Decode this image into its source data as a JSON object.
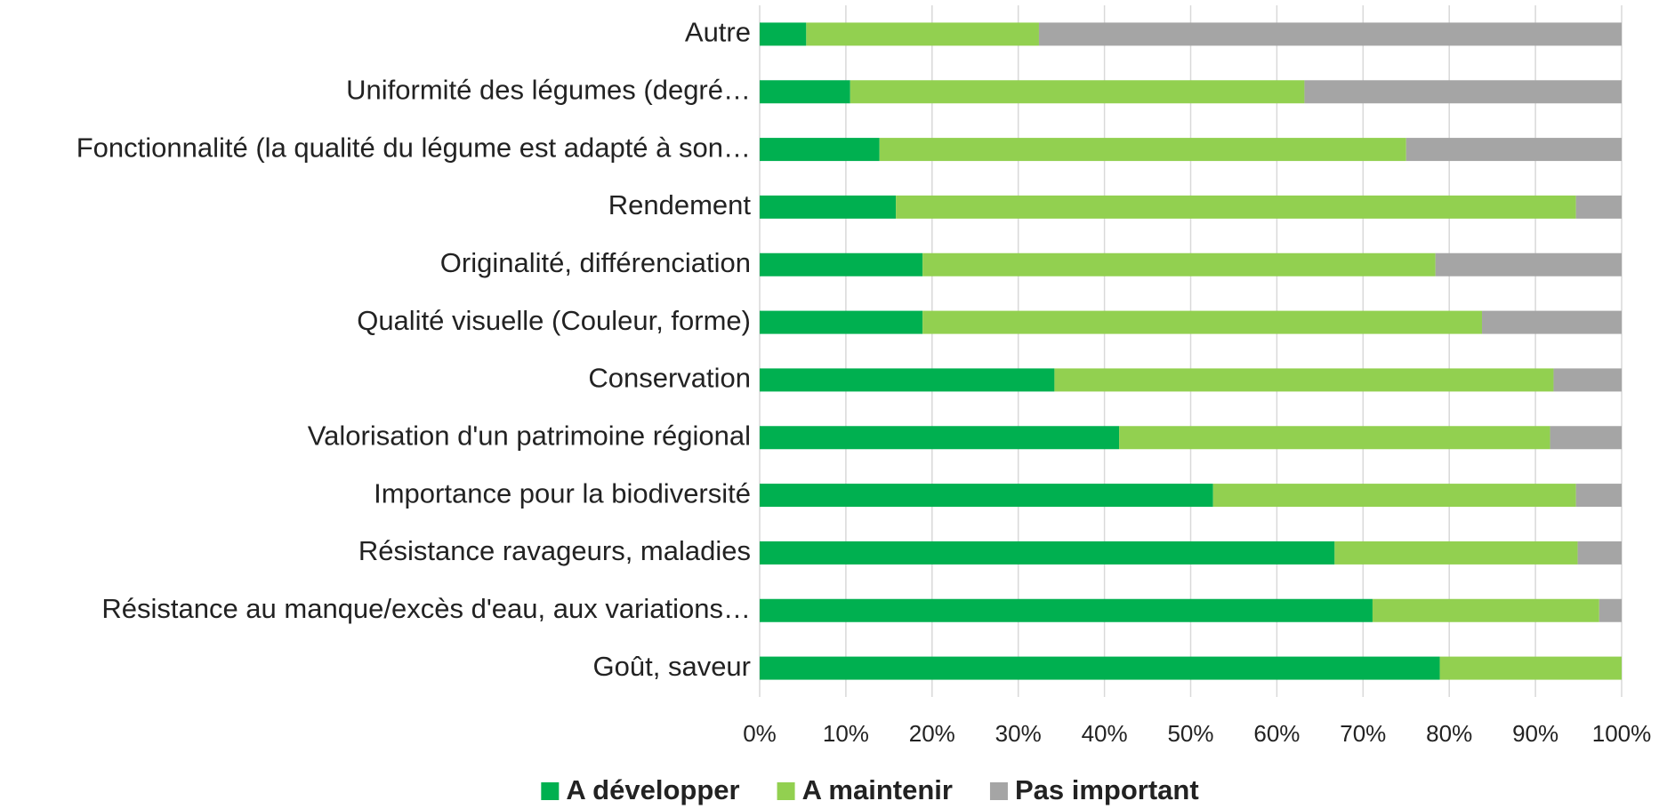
{
  "chart_data": {
    "type": "bar",
    "orientation": "horizontal",
    "stacked": true,
    "categories": [
      "Autre",
      "Uniformité des légumes (degré…",
      "Fonctionnalité (la qualité du légume est adapté à son…",
      "Rendement",
      "Originalité, différenciation",
      "Qualité visuelle (Couleur, forme)",
      "Conservation",
      "Valorisation d'un patrimoine régional",
      "Importance pour la biodiversité",
      "Résistance ravageurs, maladies",
      "Résistance au manque/excès d'eau, aux variations…",
      "Goût, saveur"
    ],
    "series": [
      {
        "name": "A développer",
        "color": "#00b050",
        "values": [
          5.4,
          10.5,
          13.9,
          15.8,
          18.9,
          18.9,
          34.2,
          41.7,
          52.6,
          66.7,
          71.1,
          78.9
        ]
      },
      {
        "name": "A maintenir",
        "color": "#92d050",
        "values": [
          27,
          52.7,
          61.1,
          78.9,
          59.5,
          64.9,
          57.9,
          50,
          42.1,
          28.2,
          26.3,
          21.1
        ]
      },
      {
        "name": "Pas important",
        "color": "#a5a5a5",
        "values": [
          67.6,
          36.8,
          25,
          5.3,
          21.6,
          16.2,
          7.9,
          8.3,
          5.3,
          5.1,
          2.6,
          0
        ]
      }
    ],
    "xlim": [
      0,
      100
    ],
    "xticks": [
      {
        "value": 0,
        "label": "0%"
      },
      {
        "value": 10,
        "label": "10%"
      },
      {
        "value": 20,
        "label": "20%"
      },
      {
        "value": 30,
        "label": "30%"
      },
      {
        "value": 40,
        "label": "40%"
      },
      {
        "value": 50,
        "label": "50%"
      },
      {
        "value": 60,
        "label": "60%"
      },
      {
        "value": 70,
        "label": "70%"
      },
      {
        "value": 80,
        "label": "80%"
      },
      {
        "value": 90,
        "label": "90%"
      },
      {
        "value": 100,
        "label": "100%"
      }
    ],
    "grid": true,
    "legend": "bottom"
  }
}
